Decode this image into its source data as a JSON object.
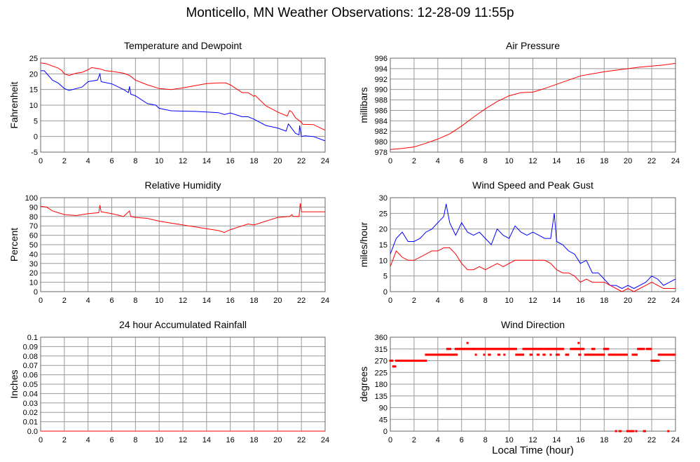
{
  "title": "Monticello, MN Weather Observations: 12-28-09 11:55p",
  "xlabel": "Local Time (hour)",
  "colors": {
    "red": "#ff0000",
    "blue": "#0000ff",
    "grid": "#999999"
  },
  "chart_data": [
    {
      "type": "line",
      "title": "Temperature and Dewpoint",
      "ylabel": "Fahrenheit",
      "xlim": [
        0,
        24
      ],
      "ylim": [
        -5,
        25
      ],
      "yticks": [
        "-5",
        "0",
        "5",
        "10",
        "15",
        "20",
        "25"
      ],
      "xticks": [
        "0",
        "2",
        "4",
        "6",
        "8",
        "10",
        "12",
        "14",
        "16",
        "18",
        "20",
        "22",
        "24"
      ],
      "series": [
        {
          "name": "Temperature",
          "color": "#ff0000",
          "x": [
            0,
            0.5,
            1,
            1.5,
            1.8,
            2,
            2.4,
            3,
            3.5,
            4,
            4.3,
            5,
            5.5,
            6,
            7,
            7.5,
            8,
            9,
            10,
            11,
            12,
            13,
            14,
            15,
            15.6,
            16,
            17,
            17.5,
            18,
            18.1,
            19,
            20,
            20.8,
            21,
            21.2,
            21.5,
            22,
            22.1,
            23,
            24
          ],
          "y": [
            23.5,
            23.2,
            22.5,
            21.8,
            21,
            20,
            19.5,
            20.2,
            20.5,
            21.3,
            22,
            21.6,
            21,
            20.8,
            20.2,
            19.5,
            18,
            16.5,
            15.3,
            15,
            15.5,
            16.2,
            16.9,
            17.1,
            17.1,
            16.5,
            14,
            14,
            12.8,
            13.1,
            9.8,
            7.8,
            6.5,
            8.3,
            7.8,
            6,
            4.5,
            3.9,
            3.8,
            2
          ]
        },
        {
          "name": "Dewpoint",
          "color": "#0000ff",
          "x": [
            0,
            0.3,
            1,
            1.5,
            2,
            2.4,
            3,
            3.5,
            4,
            4.8,
            5,
            5.1,
            6,
            7,
            7.4,
            7.5,
            7.6,
            8,
            9,
            9.7,
            10,
            11,
            12,
            13,
            14,
            15,
            15.5,
            16,
            17,
            17.5,
            18,
            19,
            20,
            20.7,
            20.9,
            21.5,
            21.8,
            21.85,
            22,
            22.3,
            23,
            24
          ],
          "y": [
            21,
            21,
            18,
            17,
            15.3,
            14.7,
            15.3,
            15.8,
            17.5,
            18,
            20,
            17.5,
            16.8,
            15,
            14,
            16,
            13.5,
            13,
            10.5,
            10,
            9,
            8.2,
            8.1,
            8,
            7.8,
            7.6,
            7,
            7.5,
            6.3,
            6.3,
            5.5,
            3.5,
            2.7,
            1.7,
            4,
            1,
            0.5,
            3.5,
            0,
            0.2,
            0,
            -1.4
          ]
        }
      ]
    },
    {
      "type": "line",
      "title": "Air Pressure",
      "ylabel": "millibars",
      "xlim": [
        0,
        24
      ],
      "ylim": [
        978,
        996
      ],
      "yticks": [
        "978",
        "980",
        "982",
        "984",
        "986",
        "988",
        "990",
        "992",
        "994",
        "996"
      ],
      "xticks": [
        "0",
        "2",
        "4",
        "6",
        "8",
        "10",
        "12",
        "14",
        "16",
        "18",
        "20",
        "22",
        "24"
      ],
      "series": [
        {
          "name": "Pressure",
          "color": "#ff0000",
          "x": [
            0,
            1,
            2,
            3,
            4,
            5,
            6,
            7,
            8,
            9,
            10,
            11,
            12,
            13,
            14,
            15,
            16,
            17,
            18,
            19,
            20,
            21,
            22,
            23,
            24
          ],
          "y": [
            978.5,
            978.7,
            979,
            979.7,
            980.5,
            981.5,
            983,
            984.7,
            986.3,
            987.7,
            988.8,
            989.4,
            989.5,
            990.2,
            991,
            991.8,
            992.6,
            993,
            993.4,
            993.7,
            994,
            994.3,
            994.5,
            994.7,
            995
          ]
        }
      ]
    },
    {
      "type": "line",
      "title": "Relative Humidity",
      "ylabel": "Percent",
      "xlim": [
        0,
        24
      ],
      "ylim": [
        0,
        100
      ],
      "yticks": [
        "0",
        "10",
        "20",
        "30",
        "40",
        "50",
        "60",
        "70",
        "80",
        "90",
        "100"
      ],
      "xticks": [
        "0",
        "2",
        "4",
        "6",
        "8",
        "10",
        "12",
        "14",
        "16",
        "18",
        "20",
        "22",
        "24"
      ],
      "series": [
        {
          "name": "Relative Humidity",
          "color": "#ff0000",
          "x": [
            0,
            0.5,
            1,
            2,
            3,
            4,
            4.9,
            5,
            5.1,
            6,
            7,
            7.5,
            7.6,
            8,
            9,
            10,
            11,
            12,
            13,
            14,
            15,
            15.5,
            16,
            17,
            17.5,
            18,
            19,
            20,
            21,
            21.2,
            21.3,
            21.8,
            21.9,
            22,
            23,
            24
          ],
          "y": [
            91,
            90,
            86,
            82,
            81,
            83,
            84,
            92,
            85,
            83,
            80,
            86,
            80,
            79,
            78,
            75,
            73,
            71,
            69,
            67,
            65,
            63,
            66,
            70,
            72,
            71,
            75,
            79,
            80,
            82,
            80,
            80,
            94,
            85,
            85,
            85
          ]
        }
      ]
    },
    {
      "type": "line",
      "title": "Wind Speed and Peak Gust",
      "ylabel": "miles/hour",
      "xlim": [
        0,
        24
      ],
      "ylim": [
        0,
        30
      ],
      "yticks": [
        "0",
        "5",
        "10",
        "15",
        "20",
        "25",
        "30"
      ],
      "xticks": [
        "0",
        "2",
        "4",
        "6",
        "8",
        "10",
        "12",
        "14",
        "16",
        "18",
        "20",
        "22",
        "24"
      ],
      "series": [
        {
          "name": "Peak Gust",
          "color": "#0000ff",
          "x": [
            0,
            0.5,
            1,
            1.5,
            2,
            2.5,
            3,
            3.5,
            4,
            4.5,
            4.7,
            5,
            5.5,
            6,
            6.5,
            7,
            7.5,
            8,
            8.5,
            9,
            9.5,
            10,
            10.5,
            11,
            11.5,
            12,
            12.5,
            13,
            13.5,
            13.8,
            14,
            14.5,
            15,
            15.5,
            16,
            16.5,
            17,
            17.5,
            18,
            18.5,
            19,
            19.5,
            20,
            20.5,
            21,
            21.5,
            22,
            22.5,
            23,
            23.5,
            24
          ],
          "y": [
            12,
            17,
            19,
            16,
            16,
            17,
            19,
            20,
            22,
            24,
            28,
            22,
            18,
            22,
            19,
            18,
            19,
            17,
            15,
            20,
            18,
            17,
            21,
            19,
            18,
            19,
            18,
            17,
            17,
            25,
            16,
            15,
            13,
            12,
            9,
            10,
            6,
            6,
            4,
            2,
            2,
            1,
            2,
            1,
            2,
            3,
            5,
            4,
            2,
            3,
            4
          ]
        },
        {
          "name": "Wind Speed",
          "color": "#ff0000",
          "x": [
            0,
            0.5,
            1,
            1.5,
            2,
            2.5,
            3,
            3.5,
            4,
            4.5,
            5,
            5.5,
            6,
            6.5,
            7,
            7.5,
            8,
            8.5,
            9,
            9.5,
            10,
            10.5,
            11,
            11.5,
            12,
            12.5,
            13,
            13.5,
            14,
            14.5,
            15,
            15.5,
            16,
            16.5,
            17,
            17.5,
            18,
            18.5,
            19,
            19.5,
            20,
            20.5,
            21,
            21.5,
            22,
            22.5,
            23,
            23.5,
            24
          ],
          "y": [
            8,
            13,
            11,
            10,
            10,
            11,
            12,
            13,
            13,
            14,
            14,
            12,
            9,
            7,
            7,
            8,
            7,
            8,
            9,
            8,
            9,
            10,
            10,
            10,
            10,
            10,
            10,
            9,
            7,
            6,
            6,
            5,
            3,
            4,
            3,
            3,
            3,
            2,
            1,
            0,
            1,
            0,
            1,
            2,
            3,
            2,
            1,
            1,
            1
          ]
        }
      ]
    },
    {
      "type": "line",
      "title": "24 hour Accumulated Rainfall",
      "ylabel": "Inches",
      "xlim": [
        0,
        24
      ],
      "ylim": [
        0,
        0.1
      ],
      "yticks": [
        "0.0",
        "0.01",
        "0.02",
        "0.03",
        "0.04",
        "0.05",
        "0.06",
        "0.07",
        "0.08",
        "0.09",
        "0.1"
      ],
      "xticks": [
        "0",
        "2",
        "4",
        "6",
        "8",
        "10",
        "12",
        "14",
        "16",
        "18",
        "20",
        "22",
        "24"
      ],
      "series": [
        {
          "name": "Rainfall",
          "color": "#ff0000",
          "x": [
            0,
            24
          ],
          "y": [
            0,
            0
          ]
        }
      ]
    },
    {
      "type": "scatter",
      "title": "Wind Direction",
      "ylabel": "degrees",
      "xlim": [
        0,
        24
      ],
      "ylim": [
        0,
        360
      ],
      "yticks": [
        "0",
        "45",
        "90",
        "135",
        "180",
        "225",
        "270",
        "315",
        "360"
      ],
      "xticks": [
        "0",
        "2",
        "4",
        "6",
        "8",
        "10",
        "12",
        "14",
        "16",
        "18",
        "20",
        "22",
        "24"
      ],
      "runs_note": "observations every 5 min grouped as [start_hour, end_hour, degrees]",
      "series": [
        {
          "name": "Wind Direction",
          "color": "#ff0000",
          "runs": [
            [
              0,
              0.2,
              270
            ],
            [
              0.25,
              0.45,
              248
            ],
            [
              0.5,
              3.0,
              270
            ],
            [
              3.0,
              5.6,
              293
            ],
            [
              4.8,
              4.9,
              315
            ],
            [
              5.05,
              5.1,
              315
            ],
            [
              5.5,
              7.0,
              315
            ],
            [
              6.5,
              6.5,
              338
            ],
            [
              7.0,
              10.6,
              315
            ],
            [
              7.2,
              7.2,
              293
            ],
            [
              7.9,
              7.9,
              293
            ],
            [
              8.3,
              8.45,
              293
            ],
            [
              9.1,
              9.2,
              293
            ],
            [
              9.6,
              9.6,
              293
            ],
            [
              10.6,
              11.2,
              293
            ],
            [
              11.2,
              12.9,
              315
            ],
            [
              11.8,
              11.9,
              293
            ],
            [
              12.4,
              12.5,
              293
            ],
            [
              12.9,
              13.0,
              293
            ],
            [
              13.0,
              14.3,
              315
            ],
            [
              13.5,
              13.5,
              293
            ],
            [
              14.0,
              14.2,
              293
            ],
            [
              14.3,
              14.6,
              315
            ],
            [
              14.8,
              15.0,
              293
            ],
            [
              15.2,
              16.0,
              315
            ],
            [
              15.85,
              15.85,
              338
            ],
            [
              15.9,
              16.0,
              293
            ],
            [
              16.1,
              16.3,
              315
            ],
            [
              16.4,
              18.0,
              293
            ],
            [
              17.0,
              17.2,
              315
            ],
            [
              18.0,
              18.4,
              315
            ],
            [
              18.4,
              19.9,
              293
            ],
            [
              19.0,
              19.05,
              0
            ],
            [
              19.3,
              19.45,
              0
            ],
            [
              19.95,
              20.5,
              0
            ],
            [
              20.4,
              20.8,
              293
            ],
            [
              20.7,
              20.7,
              0
            ],
            [
              20.85,
              21.4,
              315
            ],
            [
              21.35,
              21.5,
              0
            ],
            [
              21.6,
              22.0,
              315
            ],
            [
              22.0,
              22.6,
              270
            ],
            [
              22.6,
              24.0,
              293
            ],
            [
              23.4,
              23.4,
              0
            ]
          ]
        }
      ]
    }
  ]
}
